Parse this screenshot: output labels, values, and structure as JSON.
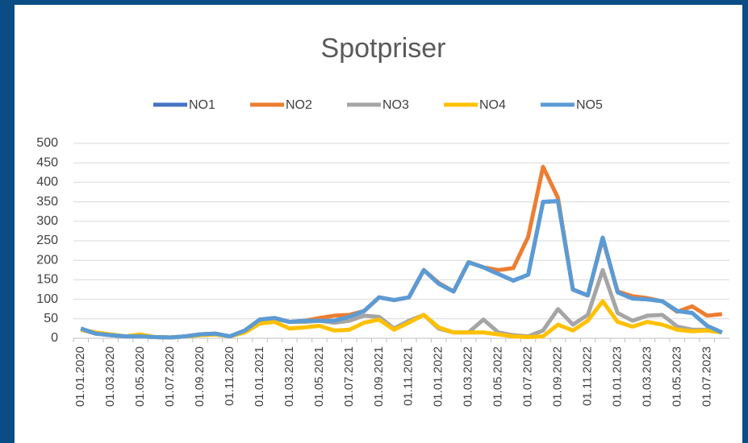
{
  "chart_data": {
    "type": "line",
    "title": "Spotpriser",
    "categories": [
      "01.01.2020",
      null,
      "01.03.2020",
      null,
      "01.05.2020",
      null,
      "01.07.2020",
      null,
      "01.09.2020",
      null,
      "01.11.2020",
      null,
      "01.01.2021",
      null,
      "01.03.2021",
      null,
      "01.05.2021",
      null,
      "01.07.2021",
      null,
      "01.09.2021",
      null,
      "01.11.2021",
      null,
      "01.01.2022",
      null,
      "01.03.2022",
      null,
      "01.05.2022",
      null,
      "01.07.2022",
      null,
      "01.09.2022",
      null,
      "01.11.2022",
      null,
      "01.01.2023",
      null,
      "01.03.2023",
      null,
      "01.05.2023",
      null,
      "01.07.2023",
      null
    ],
    "series": [
      {
        "name": "NO1",
        "color": "#4472c4",
        "values": [
          25,
          12,
          8,
          5,
          5,
          3,
          2,
          5,
          10,
          12,
          5,
          20,
          48,
          52,
          42,
          45,
          45,
          45,
          55,
          70,
          105,
          98,
          105,
          175,
          140,
          120,
          195,
          182,
          165,
          148,
          163,
          350,
          352,
          125,
          110,
          258,
          118,
          102,
          100,
          95,
          70,
          65,
          32,
          15
        ]
      },
      {
        "name": "NO2",
        "color": "#ed7d31",
        "values": [
          25,
          12,
          8,
          5,
          5,
          3,
          2,
          5,
          10,
          12,
          5,
          20,
          48,
          52,
          42,
          45,
          52,
          58,
          60,
          70,
          105,
          98,
          105,
          175,
          142,
          120,
          195,
          182,
          175,
          180,
          260,
          440,
          360,
          125,
          110,
          255,
          120,
          108,
          103,
          95,
          68,
          82,
          58,
          62
        ]
      },
      {
        "name": "NO3",
        "color": "#a5a5a5",
        "values": [
          22,
          12,
          8,
          5,
          5,
          3,
          2,
          5,
          8,
          10,
          5,
          18,
          40,
          50,
          42,
          42,
          45,
          40,
          45,
          58,
          55,
          25,
          45,
          60,
          25,
          15,
          15,
          48,
          15,
          8,
          5,
          20,
          75,
          35,
          60,
          175,
          65,
          45,
          58,
          60,
          30,
          22,
          22,
          15
        ]
      },
      {
        "name": "NO4",
        "color": "#ffc000",
        "values": [
          22,
          15,
          10,
          5,
          10,
          3,
          2,
          5,
          8,
          10,
          5,
          15,
          38,
          42,
          25,
          28,
          32,
          20,
          22,
          40,
          48,
          22,
          40,
          60,
          28,
          15,
          15,
          15,
          10,
          5,
          3,
          5,
          35,
          20,
          45,
          95,
          42,
          30,
          42,
          35,
          22,
          18,
          20,
          15
        ]
      },
      {
        "name": "NO5",
        "color": "#5b9bd5",
        "values": [
          25,
          12,
          8,
          5,
          5,
          3,
          2,
          5,
          10,
          12,
          5,
          20,
          48,
          52,
          42,
          45,
          45,
          45,
          55,
          70,
          105,
          98,
          105,
          175,
          140,
          120,
          195,
          182,
          165,
          148,
          163,
          350,
          352,
          125,
          110,
          258,
          118,
          102,
          100,
          95,
          70,
          65,
          32,
          15
        ]
      }
    ],
    "ylim": [
      0,
      500
    ],
    "yticks": [
      0,
      50,
      100,
      150,
      200,
      250,
      300,
      350,
      400,
      450,
      500
    ],
    "grid": true,
    "legend": "top"
  }
}
